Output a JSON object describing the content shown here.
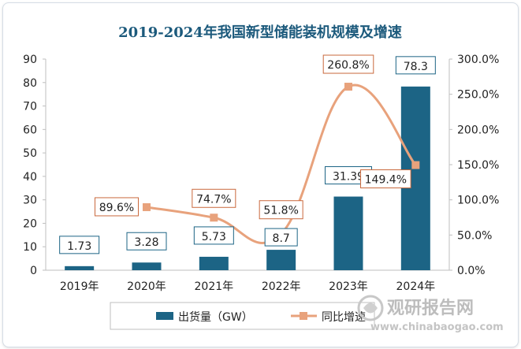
{
  "chart_data": {
    "type": "bar",
    "title": "2019-2024年我国新型储能装机规模及增速",
    "categories": [
      "2019年",
      "2020年",
      "2021年",
      "2022年",
      "2023年",
      "2024年"
    ],
    "series": [
      {
        "name": "出货量（GW）",
        "type": "bar",
        "axis": "left",
        "values": [
          1.73,
          3.28,
          5.73,
          8.7,
          31.39,
          78.3
        ],
        "labels": [
          "1.73",
          "3.28",
          "5.73",
          "8.7",
          "31.39",
          "78.3"
        ]
      },
      {
        "name": "同比增速",
        "type": "line",
        "axis": "right",
        "values": [
          null,
          89.6,
          74.7,
          51.8,
          260.8,
          149.4
        ],
        "labels": [
          "",
          "89.6%",
          "74.7%",
          "51.8%",
          "260.8%",
          "149.4%"
        ]
      }
    ],
    "y_left": {
      "min": 0,
      "max": 90,
      "step": 10,
      "ticks": [
        "0",
        "10",
        "20",
        "30",
        "40",
        "50",
        "60",
        "70",
        "80",
        "90"
      ]
    },
    "y_right": {
      "min": 0,
      "max": 300,
      "step": 50,
      "ticks": [
        "0.0%",
        "50.0%",
        "100.0%",
        "150.0%",
        "200.0%",
        "250.0%",
        "300.0%"
      ]
    },
    "legend": {
      "position": "bottom"
    },
    "grid": false
  },
  "colors": {
    "bar": "#1c6485",
    "line": "#e8a27c",
    "marker": "#e8a27c",
    "line_label_border": "#c9683c",
    "bar_label_border": "#1c6485",
    "title": "#1c5a7c",
    "text": "#222222",
    "axis": "#bfbfbf"
  },
  "watermark": {
    "brand": "观研报告网",
    "url": "www.chinabaogao.com"
  }
}
